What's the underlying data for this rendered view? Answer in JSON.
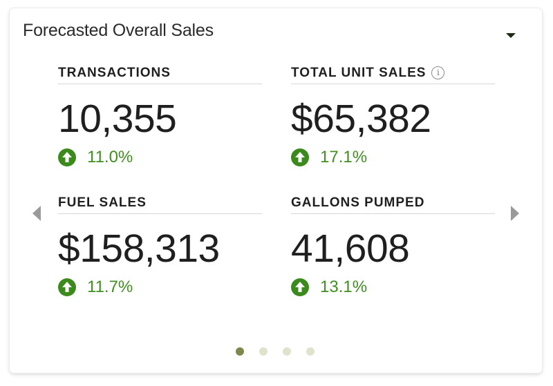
{
  "card": {
    "title": "Forecasted Overall Sales",
    "dropdown_icon": "caret-down-icon"
  },
  "metrics": [
    {
      "label": "TRANSACTIONS",
      "value": "10,355",
      "change": "11.0%",
      "trend": "up",
      "has_info": false
    },
    {
      "label": "TOTAL UNIT SALES",
      "value": "$65,382",
      "change": "17.1%",
      "trend": "up",
      "has_info": true,
      "info_glyph": "i"
    },
    {
      "label": "FUEL SALES",
      "value": "$158,313",
      "change": "11.7%",
      "trend": "up",
      "has_info": false
    },
    {
      "label": "GALLONS PUMPED",
      "value": "41,608",
      "change": "13.1%",
      "trend": "up",
      "has_info": false
    }
  ],
  "carousel": {
    "pages": 4,
    "active_page": 1,
    "prev_icon": "chevron-left-icon",
    "next_icon": "chevron-right-icon"
  },
  "colors": {
    "positive": "#3f8f1f",
    "dot_active": "#7b8a4a",
    "dot_inactive": "#dfe3cc"
  }
}
